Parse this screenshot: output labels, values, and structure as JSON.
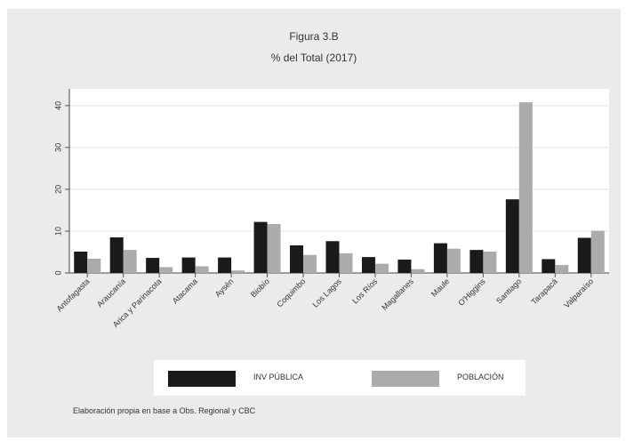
{
  "chart_data": {
    "type": "bar",
    "title": "Figura  3.B",
    "subtitle": "% del Total (2017)",
    "categories": [
      "Antofagasta",
      "Araucanía",
      "Arica y Parinacota",
      "Atacama",
      "Aysén",
      "Biobío",
      "Coquimbo",
      "Los Lagos",
      "Los Ríos",
      "Magallanes",
      "Maule",
      "O'Higgins",
      "Santiago",
      "Tarapacá",
      "Valparaíso"
    ],
    "series": [
      {
        "name": "INV PÚBLICA",
        "color": "#1a1a1a",
        "values": [
          5.1,
          8.5,
          3.6,
          3.7,
          3.7,
          12.2,
          6.6,
          7.6,
          3.8,
          3.2,
          7.1,
          5.5,
          17.6,
          3.3,
          8.4
        ]
      },
      {
        "name": "POBLACIÓN",
        "color": "#ababab",
        "values": [
          3.4,
          5.5,
          1.4,
          1.6,
          0.6,
          11.7,
          4.3,
          4.7,
          2.2,
          0.9,
          5.8,
          5.1,
          40.8,
          1.9,
          10.1
        ]
      }
    ],
    "yticks": [
      0,
      10,
      20,
      30,
      40
    ],
    "ylim": [
      0,
      44
    ],
    "grid": true,
    "legend_position": "bottom",
    "xlabel": "",
    "ylabel": ""
  },
  "source_note": "Elaboración propia en base a Obs. Regional y CBC"
}
